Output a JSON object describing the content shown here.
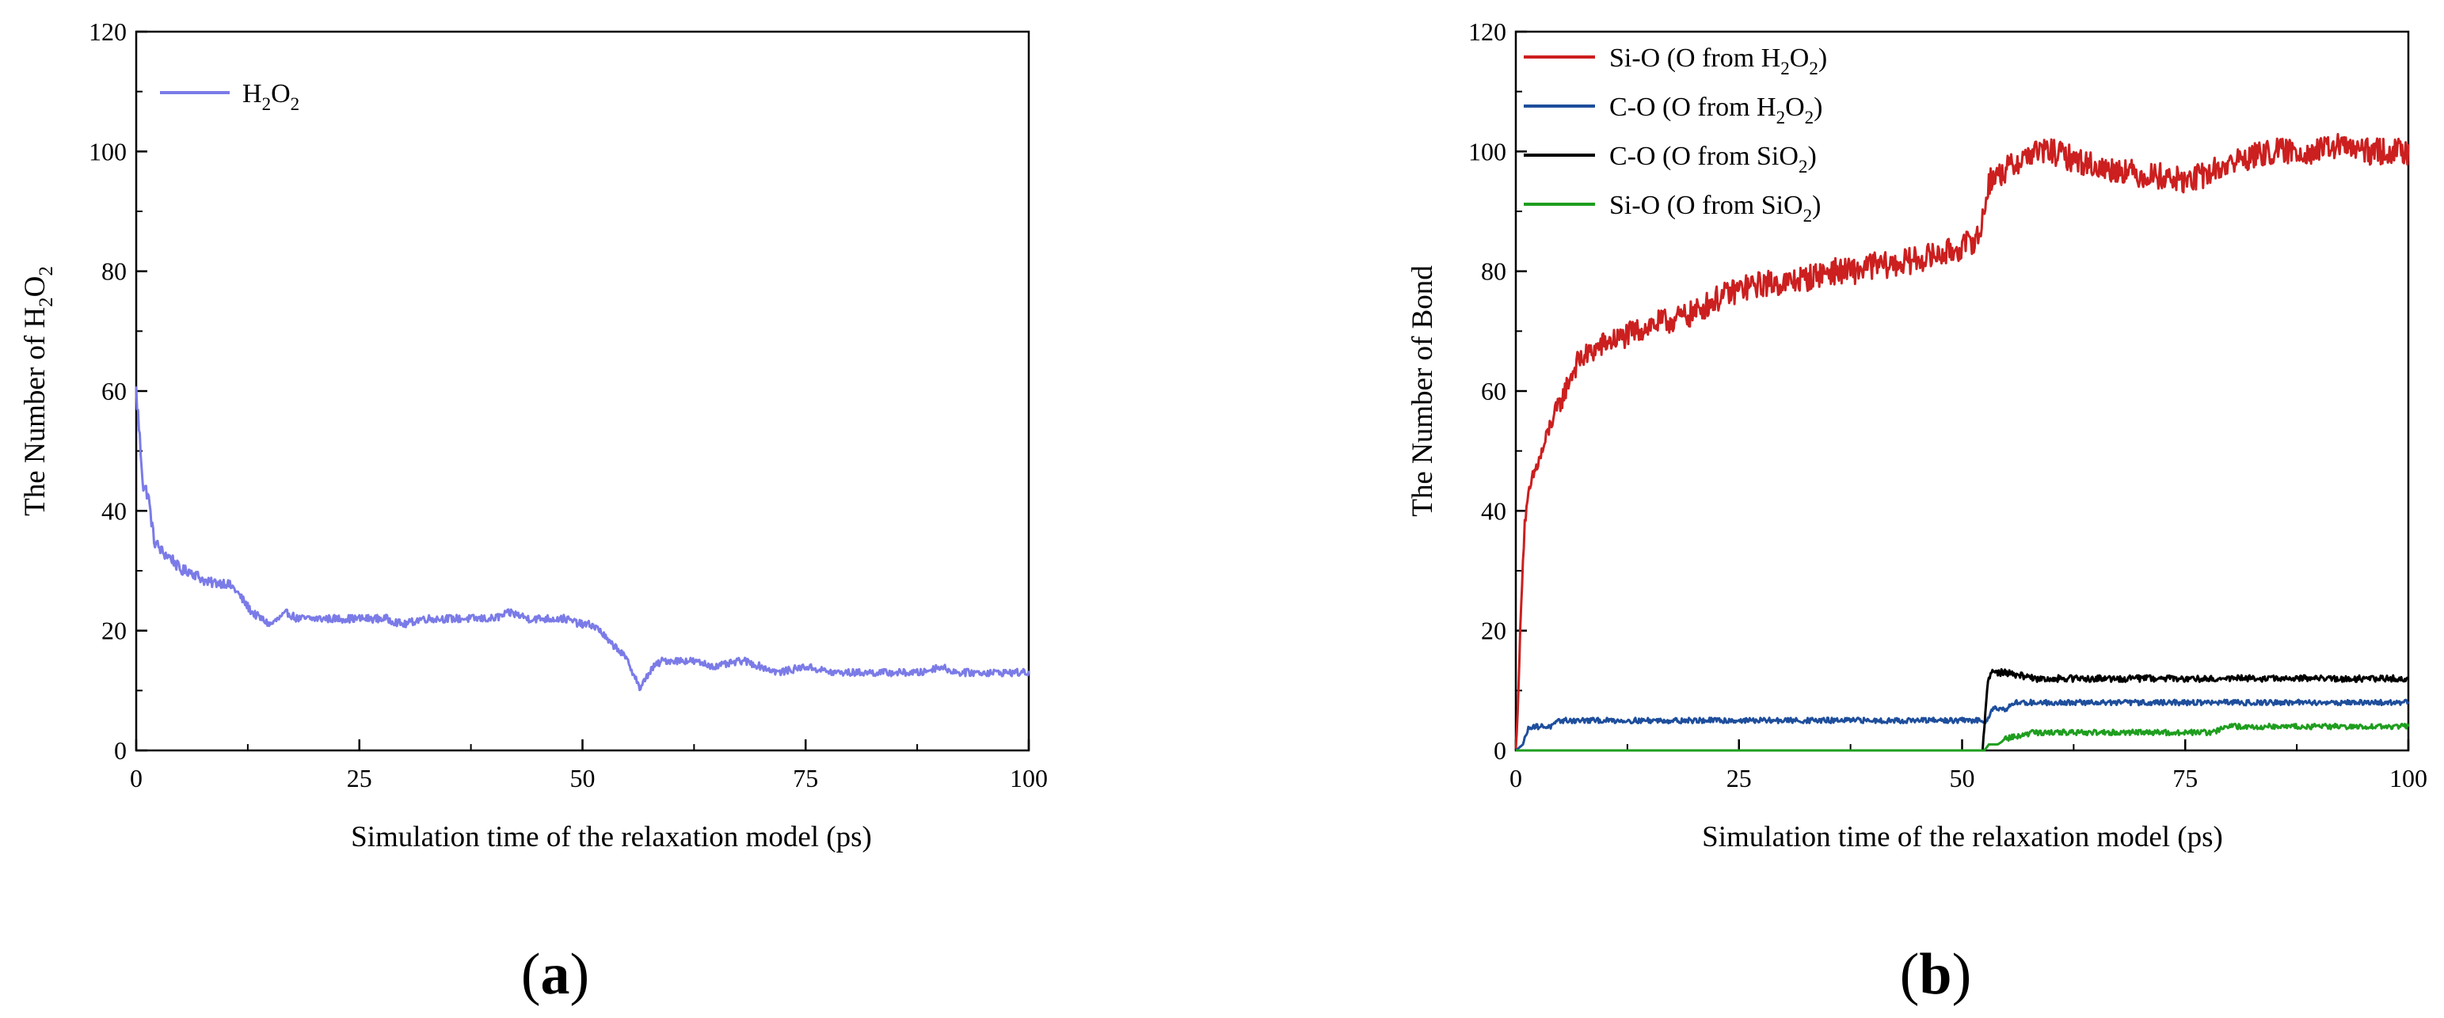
{
  "chart_data": [
    {
      "panel_label": "a",
      "type": "line",
      "xlabel": "Simulation time of the relaxation model (ps)",
      "ylabel": {
        "prefix": "The Number of H",
        "sub1": "2",
        "mid": "O",
        "sub2": "2"
      },
      "xlim": [
        0,
        100
      ],
      "ylim": [
        0,
        120
      ],
      "xticks": [
        "0",
        "25",
        "50",
        "75",
        "100"
      ],
      "yticks": [
        "0",
        "20",
        "40",
        "60",
        "80",
        "100",
        "120"
      ],
      "legend_position": "top-left",
      "series": [
        {
          "name": "H2O2",
          "label": {
            "base": "H",
            "sub1": "2",
            "mid": "O",
            "sub2": "2"
          },
          "color": "#7B7BE8",
          "points": [
            [
              0,
              60
            ],
            [
              0.4,
              52
            ],
            [
              0.8,
              44
            ],
            [
              1.3,
              43
            ],
            [
              2,
              35
            ],
            [
              3,
              33
            ],
            [
              4,
              32
            ],
            [
              5,
              30
            ],
            [
              6,
              30
            ],
            [
              7,
              29
            ],
            [
              8,
              28
            ],
            [
              9,
              28
            ],
            [
              10,
              28
            ],
            [
              11,
              27
            ],
            [
              12,
              25
            ],
            [
              13,
              23
            ],
            [
              14,
              22
            ],
            [
              15,
              21
            ],
            [
              16,
              22
            ],
            [
              17,
              23
            ],
            [
              18,
              22
            ],
            [
              20,
              22
            ],
            [
              22,
              22
            ],
            [
              25,
              22
            ],
            [
              28,
              22
            ],
            [
              30,
              21
            ],
            [
              32,
              22
            ],
            [
              35,
              22
            ],
            [
              38,
              22
            ],
            [
              40,
              22
            ],
            [
              42,
              23
            ],
            [
              44,
              22
            ],
            [
              46,
              22
            ],
            [
              48,
              22
            ],
            [
              50,
              21
            ],
            [
              51,
              21
            ],
            [
              52,
              20
            ],
            [
              53,
              18
            ],
            [
              54,
              17
            ],
            [
              55,
              15
            ],
            [
              56,
              12
            ],
            [
              56.5,
              10
            ],
            [
              57,
              12
            ],
            [
              58,
              14
            ],
            [
              59,
              15
            ],
            [
              60,
              15
            ],
            [
              62,
              15
            ],
            [
              65,
              14
            ],
            [
              68,
              15
            ],
            [
              70,
              14
            ],
            [
              72,
              13
            ],
            [
              75,
              14
            ],
            [
              78,
              13
            ],
            [
              80,
              13
            ],
            [
              82,
              13
            ],
            [
              85,
              13
            ],
            [
              88,
              13
            ],
            [
              90,
              14
            ],
            [
              92,
              13
            ],
            [
              95,
              13
            ],
            [
              97,
              13
            ],
            [
              100,
              13
            ]
          ]
        }
      ]
    },
    {
      "panel_label": "b",
      "type": "line",
      "xlabel": "Simulation time of the relaxation model (ps)",
      "ylabel": "The Number of Bond",
      "xlim": [
        0,
        100
      ],
      "ylim": [
        0,
        120
      ],
      "xticks": [
        "0",
        "25",
        "50",
        "75",
        "100"
      ],
      "yticks": [
        "0",
        "20",
        "40",
        "60",
        "80",
        "100",
        "120"
      ],
      "legend_position": "top-left",
      "series": [
        {
          "name": "Si-O (O from H2O2)",
          "label": {
            "base": "Si-O (O from H",
            "sub1": "2",
            "mid": "O",
            "sub2": "2",
            "end": ")"
          },
          "color": "#CC1F1F",
          "points": [
            [
              0,
              0
            ],
            [
              0.3,
              10
            ],
            [
              0.6,
              25
            ],
            [
              1,
              38
            ],
            [
              1.5,
              43
            ],
            [
              2,
              46
            ],
            [
              3,
              50
            ],
            [
              4,
              55
            ],
            [
              5,
              58
            ],
            [
              6,
              62
            ],
            [
              7,
              65
            ],
            [
              8,
              66
            ],
            [
              10,
              68
            ],
            [
              12,
              69
            ],
            [
              15,
              71
            ],
            [
              18,
              72
            ],
            [
              20,
              73
            ],
            [
              22,
              75
            ],
            [
              25,
              77
            ],
            [
              28,
              78
            ],
            [
              30,
              78
            ],
            [
              33,
              79
            ],
            [
              35,
              80
            ],
            [
              38,
              80
            ],
            [
              40,
              81
            ],
            [
              42,
              81
            ],
            [
              45,
              82
            ],
            [
              48,
              83
            ],
            [
              50,
              84
            ],
            [
              51,
              85
            ],
            [
              52,
              86
            ],
            [
              53,
              95
            ],
            [
              54,
              96
            ],
            [
              55,
              97
            ],
            [
              57,
              99
            ],
            [
              58,
              100
            ],
            [
              60,
              100
            ],
            [
              62,
              99
            ],
            [
              64,
              98
            ],
            [
              66,
              97
            ],
            [
              68,
              97
            ],
            [
              70,
              96
            ],
            [
              72,
              96
            ],
            [
              75,
              95
            ],
            [
              77,
              96
            ],
            [
              80,
              98
            ],
            [
              82,
              99
            ],
            [
              85,
              100
            ],
            [
              88,
              100
            ],
            [
              90,
              100
            ],
            [
              92,
              101
            ],
            [
              95,
              100
            ],
            [
              97,
              100
            ],
            [
              100,
              100
            ]
          ]
        },
        {
          "name": "C-O (O from H2O2)",
          "label": {
            "base": "C-O (O from H",
            "sub1": "2",
            "mid": "O",
            "sub2": "2",
            "end": ")"
          },
          "color": "#1E4E9C",
          "points": [
            [
              0,
              0
            ],
            [
              0.8,
              1
            ],
            [
              1.2,
              3
            ],
            [
              1.6,
              4
            ],
            [
              3,
              4
            ],
            [
              4,
              4
            ],
            [
              5,
              5
            ],
            [
              8,
              5
            ],
            [
              10,
              5
            ],
            [
              20,
              5
            ],
            [
              30,
              5
            ],
            [
              40,
              5
            ],
            [
              50,
              5
            ],
            [
              52,
              5
            ],
            [
              52.8,
              5
            ],
            [
              53.3,
              7
            ],
            [
              55,
              7
            ],
            [
              56,
              8
            ],
            [
              60,
              8
            ],
            [
              70,
              8
            ],
            [
              80,
              8
            ],
            [
              90,
              8
            ],
            [
              100,
              8
            ]
          ]
        },
        {
          "name": "C-O (O from SiO2)",
          "label": {
            "base": "C-O (O from SiO",
            "sub1": "2",
            "end": ")"
          },
          "color": "#000000",
          "points": [
            [
              0,
              0
            ],
            [
              10,
              0
            ],
            [
              20,
              0
            ],
            [
              30,
              0
            ],
            [
              40,
              0
            ],
            [
              50,
              0
            ],
            [
              52.3,
              0
            ],
            [
              52.6,
              6
            ],
            [
              52.9,
              12
            ],
            [
              53.3,
              13
            ],
            [
              55,
              13
            ],
            [
              58,
              12
            ],
            [
              60,
              12
            ],
            [
              65,
              12
            ],
            [
              70,
              12
            ],
            [
              75,
              12
            ],
            [
              80,
              12
            ],
            [
              85,
              12
            ],
            [
              90,
              12
            ],
            [
              95,
              12
            ],
            [
              100,
              12
            ]
          ]
        },
        {
          "name": "Si-O (O from SiO2)",
          "label": {
            "base": "Si-O (O from SiO",
            "sub1": "2",
            "end": ")"
          },
          "color": "#1E9E1E",
          "points": [
            [
              0,
              0
            ],
            [
              10,
              0
            ],
            [
              20,
              0
            ],
            [
              30,
              0
            ],
            [
              40,
              0
            ],
            [
              50,
              0
            ],
            [
              52.5,
              0
            ],
            [
              53,
              1
            ],
            [
              54,
              1
            ],
            [
              55,
              2
            ],
            [
              58,
              3
            ],
            [
              62,
              3
            ],
            [
              66,
              3
            ],
            [
              70,
              3
            ],
            [
              75,
              3
            ],
            [
              78,
              3
            ],
            [
              80,
              4
            ],
            [
              85,
              4
            ],
            [
              90,
              4
            ],
            [
              95,
              4
            ],
            [
              100,
              4
            ]
          ]
        }
      ]
    }
  ]
}
